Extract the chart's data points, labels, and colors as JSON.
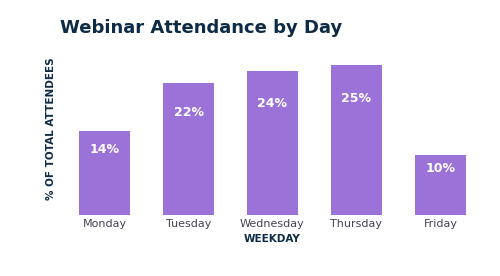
{
  "title": "Webinar Attendance by Day",
  "categories": [
    "Monday",
    "Tuesday",
    "Wednesday",
    "Thursday",
    "Friday"
  ],
  "values": [
    14,
    22,
    24,
    25,
    10
  ],
  "labels": [
    "14%",
    "22%",
    "24%",
    "25%",
    "10%"
  ],
  "bar_color": "#9b72d8",
  "xlabel": "WEEKDAY",
  "ylabel": "% OF TOTAL ATTENDEES",
  "title_color": "#0d2b45",
  "xlabel_color": "#0d2b45",
  "ylabel_color": "#0d2b45",
  "label_color": "#ffffff",
  "tick_color": "#444455",
  "background_color": "#ffffff",
  "title_fontsize": 13,
  "axis_label_fontsize": 7.5,
  "bar_label_fontsize": 9,
  "tick_fontsize": 8,
  "ylim": [
    0,
    29
  ]
}
